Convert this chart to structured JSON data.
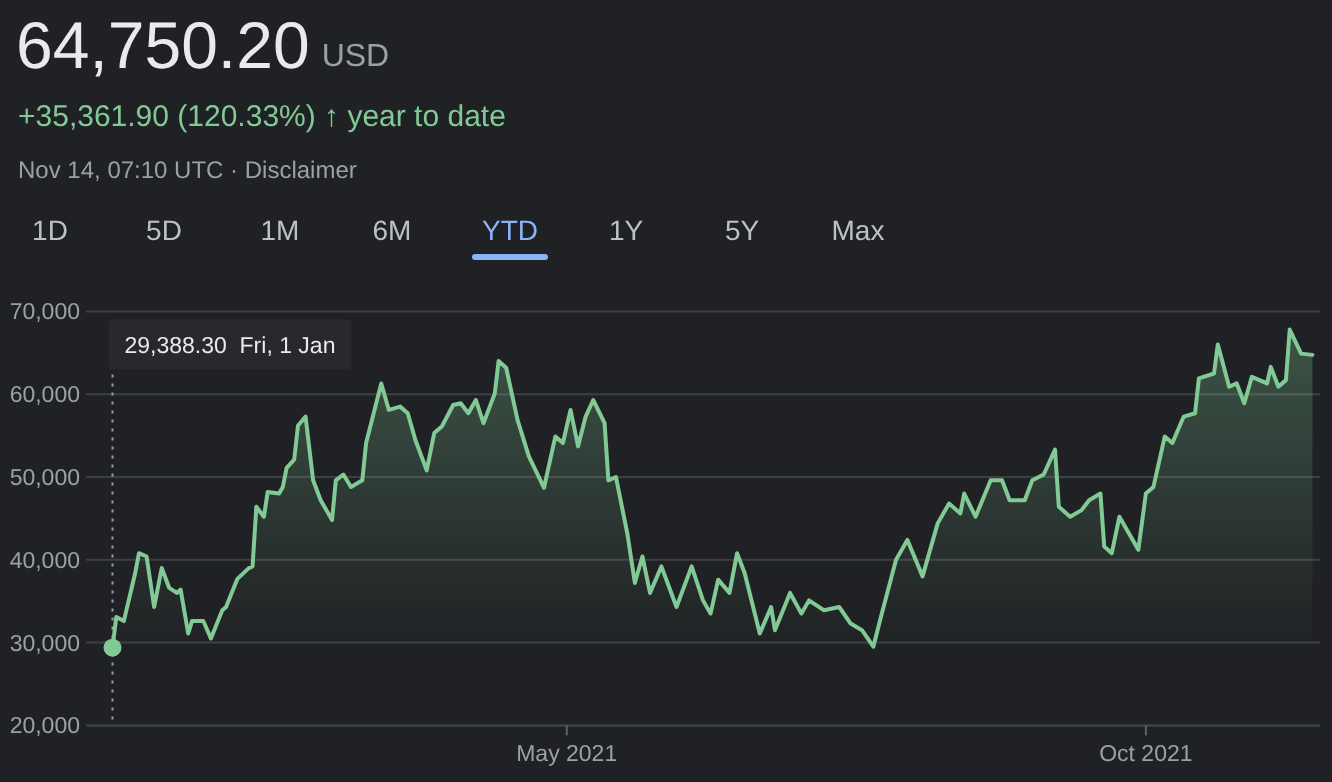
{
  "chart_data": {
    "type": "area",
    "title": "64,750.20",
    "subtitle": "+35,361.90 (120.33%) ↑ year to date",
    "annotations": [
      "USD",
      "Nov 14, 07:10 UTC · Disclaimer",
      "1D",
      "5D",
      "1M",
      "6M",
      "YTD",
      "1Y",
      "5Y",
      "Max"
    ],
    "x": [
      "2021-01-01",
      "2021-01-02",
      "2021-01-04",
      "2021-01-07",
      "2021-01-08",
      "2021-01-10",
      "2021-01-12",
      "2021-01-14",
      "2021-01-16",
      "2021-01-18",
      "2021-01-19",
      "2021-01-21",
      "2021-01-22",
      "2021-01-25",
      "2021-01-27",
      "2021-01-30",
      "2021-01-31",
      "2021-02-03",
      "2021-02-06",
      "2021-02-07",
      "2021-02-08",
      "2021-02-10",
      "2021-02-11",
      "2021-02-14",
      "2021-02-15",
      "2021-02-16",
      "2021-02-18",
      "2021-02-19",
      "2021-02-21",
      "2021-02-23",
      "2021-02-25",
      "2021-02-28",
      "2021-03-01",
      "2021-03-03",
      "2021-03-05",
      "2021-03-08",
      "2021-03-09",
      "2021-03-11",
      "2021-03-13",
      "2021-03-15",
      "2021-03-18",
      "2021-03-20",
      "2021-03-22",
      "2021-03-25",
      "2021-03-27",
      "2021-03-29",
      "2021-04-01",
      "2021-04-03",
      "2021-04-05",
      "2021-04-07",
      "2021-04-09",
      "2021-04-12",
      "2021-04-13",
      "2021-04-15",
      "2021-04-18",
      "2021-04-21",
      "2021-04-25",
      "2021-04-28",
      "2021-04-30",
      "2021-05-02",
      "2021-05-04",
      "2021-05-06",
      "2021-05-08",
      "2021-05-11",
      "2021-05-12",
      "2021-05-14",
      "2021-05-17",
      "2021-05-19",
      "2021-05-21",
      "2021-05-23",
      "2021-05-26",
      "2021-05-30",
      "2021-06-03",
      "2021-06-06",
      "2021-06-08",
      "2021-06-10",
      "2021-06-13",
      "2021-06-15",
      "2021-06-17",
      "2021-06-21",
      "2021-06-24",
      "2021-06-25",
      "2021-06-29",
      "2021-07-02",
      "2021-07-04",
      "2021-07-08",
      "2021-07-12",
      "2021-07-15",
      "2021-07-18",
      "2021-07-21",
      "2021-07-23",
      "2021-07-27",
      "2021-07-30",
      "2021-08-03",
      "2021-08-07",
      "2021-08-10",
      "2021-08-13",
      "2021-08-14",
      "2021-08-17",
      "2021-08-21",
      "2021-08-24",
      "2021-08-26",
      "2021-08-30",
      "2021-09-01",
      "2021-09-04",
      "2021-09-07",
      "2021-09-08",
      "2021-09-11",
      "2021-09-14",
      "2021-09-16",
      "2021-09-19",
      "2021-09-20",
      "2021-09-22",
      "2021-09-24",
      "2021-09-27",
      "2021-09-29",
      "2021-10-01",
      "2021-10-03",
      "2021-10-06",
      "2021-10-08",
      "2021-10-11",
      "2021-10-14",
      "2021-10-15",
      "2021-10-19",
      "2021-10-20",
      "2021-10-23",
      "2021-10-25",
      "2021-10-27",
      "2021-10-29",
      "2021-11-02",
      "2021-11-03",
      "2021-11-05",
      "2021-11-07",
      "2021-11-08",
      "2021-11-11",
      "2021-11-14"
    ],
    "series": [
      {
        "color": "#81c995",
        "values": [
          29388.3,
          33100,
          32600,
          38400,
          40800,
          40400,
          34300,
          39000,
          36600,
          36000,
          36400,
          31100,
          32600,
          32600,
          30500,
          33900,
          34300,
          37700,
          39000,
          39200,
          46400,
          45200,
          48200,
          48000,
          48800,
          51100,
          52100,
          56200,
          57300,
          49600,
          47200,
          44800,
          49600,
          50300,
          48800,
          49600,
          54100,
          57700,
          61300,
          58100,
          58500,
          57700,
          54500,
          50800,
          55300,
          56100,
          58700,
          58900,
          57700,
          59300,
          56500,
          60100,
          64000,
          63200,
          56900,
          52500,
          48700,
          54900,
          54100,
          58100,
          53700,
          57300,
          59300,
          56500,
          49600,
          50000,
          43200,
          37200,
          40400,
          36000,
          39200,
          34300,
          39200,
          35100,
          33500,
          37600,
          36000,
          40800,
          38400,
          31100,
          34300,
          31500,
          36000,
          33500,
          35100,
          33900,
          34300,
          32300,
          31500,
          29500,
          33100,
          40000,
          42400,
          38000,
          44400,
          46800,
          45600,
          48000,
          45200,
          49600,
          49600,
          47200,
          47200,
          49600,
          50300,
          53300,
          46400,
          45200,
          46000,
          47200,
          48000,
          41600,
          40800,
          45200,
          42800,
          41200,
          48000,
          48800,
          54900,
          54100,
          57300,
          57700,
          61900,
          62500,
          66000,
          60900,
          61300,
          58900,
          62100,
          61300,
          63300,
          60900,
          61700,
          67800,
          64900,
          64750.2
        ]
      }
    ],
    "xlim": [
      "2020-12-25",
      "2021-11-16"
    ],
    "xticks": [
      {
        "value": "2021-05-01",
        "label": "May 2021"
      },
      {
        "value": "2021-10-01",
        "label": "Oct 2021"
      }
    ],
    "ylim": [
      20000,
      70000
    ],
    "yticks": [
      {
        "value": 20000,
        "label": "20,000"
      },
      {
        "value": 30000,
        "label": "30,000"
      },
      {
        "value": 40000,
        "label": "40,000"
      },
      {
        "value": 50000,
        "label": "50,000"
      },
      {
        "value": 60000,
        "label": "60,000"
      },
      {
        "value": 70000,
        "label": "70,000"
      }
    ],
    "grid": "y",
    "ref_lines": [
      {
        "axis": "x",
        "value": "2021-01-01",
        "label": "29,388.30  Fri, 1 Jan",
        "color": "#9aa0a6",
        "line_style": "dotted"
      }
    ]
  }
}
